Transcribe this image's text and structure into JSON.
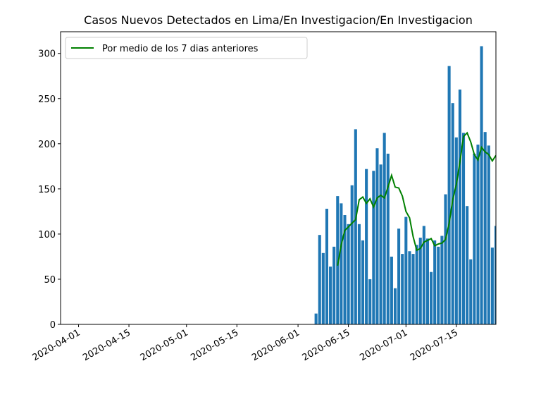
{
  "chart_data": {
    "type": "bar+line",
    "title": "Casos Nuevos Detectados en Lima/En Investigacion/En Investigacion",
    "x": [
      "2020-06-06",
      "2020-06-07",
      "2020-06-08",
      "2020-06-09",
      "2020-06-10",
      "2020-06-11",
      "2020-06-12",
      "2020-06-13",
      "2020-06-14",
      "2020-06-15",
      "2020-06-16",
      "2020-06-17",
      "2020-06-18",
      "2020-06-19",
      "2020-06-20",
      "2020-06-21",
      "2020-06-22",
      "2020-06-23",
      "2020-06-24",
      "2020-06-25",
      "2020-06-26",
      "2020-06-27",
      "2020-06-28",
      "2020-06-29",
      "2020-06-30",
      "2020-07-01",
      "2020-07-02",
      "2020-07-03",
      "2020-07-04",
      "2020-07-05",
      "2020-07-06",
      "2020-07-07",
      "2020-07-08",
      "2020-07-09",
      "2020-07-10",
      "2020-07-11",
      "2020-07-12",
      "2020-07-13",
      "2020-07-14",
      "2020-07-15",
      "2020-07-16",
      "2020-07-17",
      "2020-07-18",
      "2020-07-19",
      "2020-07-20",
      "2020-07-21",
      "2020-07-22",
      "2020-07-23",
      "2020-07-24",
      "2020-07-25",
      "2020-07-26"
    ],
    "series": [
      {
        "type": "bar",
        "color": "#1f77b4",
        "values": [
          12,
          99,
          79,
          128,
          64,
          86,
          142,
          134,
          121,
          111,
          154,
          216,
          111,
          93,
          172,
          50,
          170,
          195,
          177,
          212,
          189,
          75,
          40,
          106,
          78,
          119,
          81,
          78,
          88,
          96,
          109,
          95,
          58,
          93,
          86,
          98,
          144,
          286,
          245,
          207,
          260,
          212,
          131,
          72,
          189,
          199,
          308,
          213,
          198,
          85,
          109
        ]
      },
      {
        "type": "line",
        "name": "Por medio de los 7 dias anteriores",
        "color": "#008000",
        "values": [
          null,
          null,
          null,
          null,
          null,
          null,
          65,
          88,
          104,
          108,
          112,
          116,
          138,
          141,
          134,
          139,
          130,
          140,
          143,
          140,
          152,
          165,
          152,
          151,
          142,
          125,
          118,
          97,
          82,
          84,
          91,
          93,
          95,
          87,
          89,
          90,
          94,
          112,
          138,
          155,
          180,
          208,
          212,
          202,
          188,
          182,
          196,
          191,
          188,
          181,
          187
        ]
      }
    ],
    "xlim": [
      "2020-03-27",
      "2020-07-26"
    ],
    "xticks": [
      "2020-04-01",
      "2020-04-15",
      "2020-05-01",
      "2020-05-15",
      "2020-06-01",
      "2020-06-15",
      "2020-07-01",
      "2020-07-15"
    ],
    "ylim": [
      0,
      324
    ],
    "yticks": [
      0,
      50,
      100,
      150,
      200,
      250,
      300
    ],
    "legend": "upper left"
  }
}
